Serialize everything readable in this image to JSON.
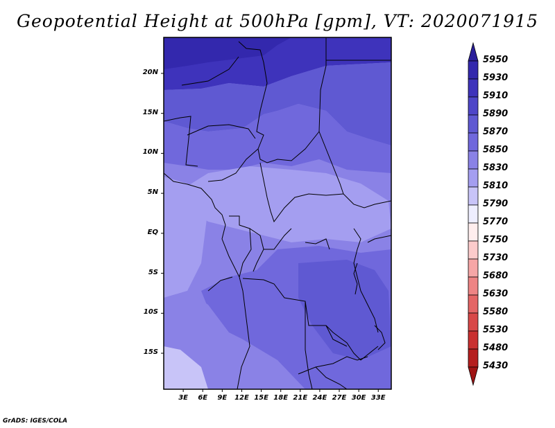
{
  "title": "Geopotential Height at 500hPa [gpm], VT: 2020071915",
  "credit": "GrADS: IGES/COLA",
  "map": {
    "lat_ticks": [
      "20N",
      "15N",
      "10N",
      "5N",
      "EQ",
      "5S",
      "10S",
      "15S"
    ],
    "lon_ticks": [
      "3E",
      "6E",
      "9E",
      "12E",
      "15E",
      "18E",
      "21E",
      "24E",
      "27E",
      "30E",
      "33E"
    ],
    "lat_range": [
      -19.5,
      24.5
    ],
    "lon_range": [
      0,
      35
    ],
    "coastline_color": "#000000"
  },
  "colorbar": {
    "levels": [
      "5950",
      "5930",
      "5910",
      "5890",
      "5870",
      "5850",
      "5830",
      "5810",
      "5790",
      "5770",
      "5750",
      "5730",
      "5680",
      "5630",
      "5580",
      "5530",
      "5480",
      "5430"
    ],
    "colors": [
      "#2a1e9a",
      "#3328ad",
      "#3e33bb",
      "#4e46c8",
      "#5f59d2",
      "#7068dc",
      "#8a82e6",
      "#a49ef0",
      "#c8c4f8",
      "#eeeeff",
      "#ffeeee",
      "#fccbcb",
      "#f6a6a6",
      "#ee8484",
      "#e46565",
      "#d84848",
      "#c93030",
      "#b51e1e",
      "#a01414"
    ]
  }
}
